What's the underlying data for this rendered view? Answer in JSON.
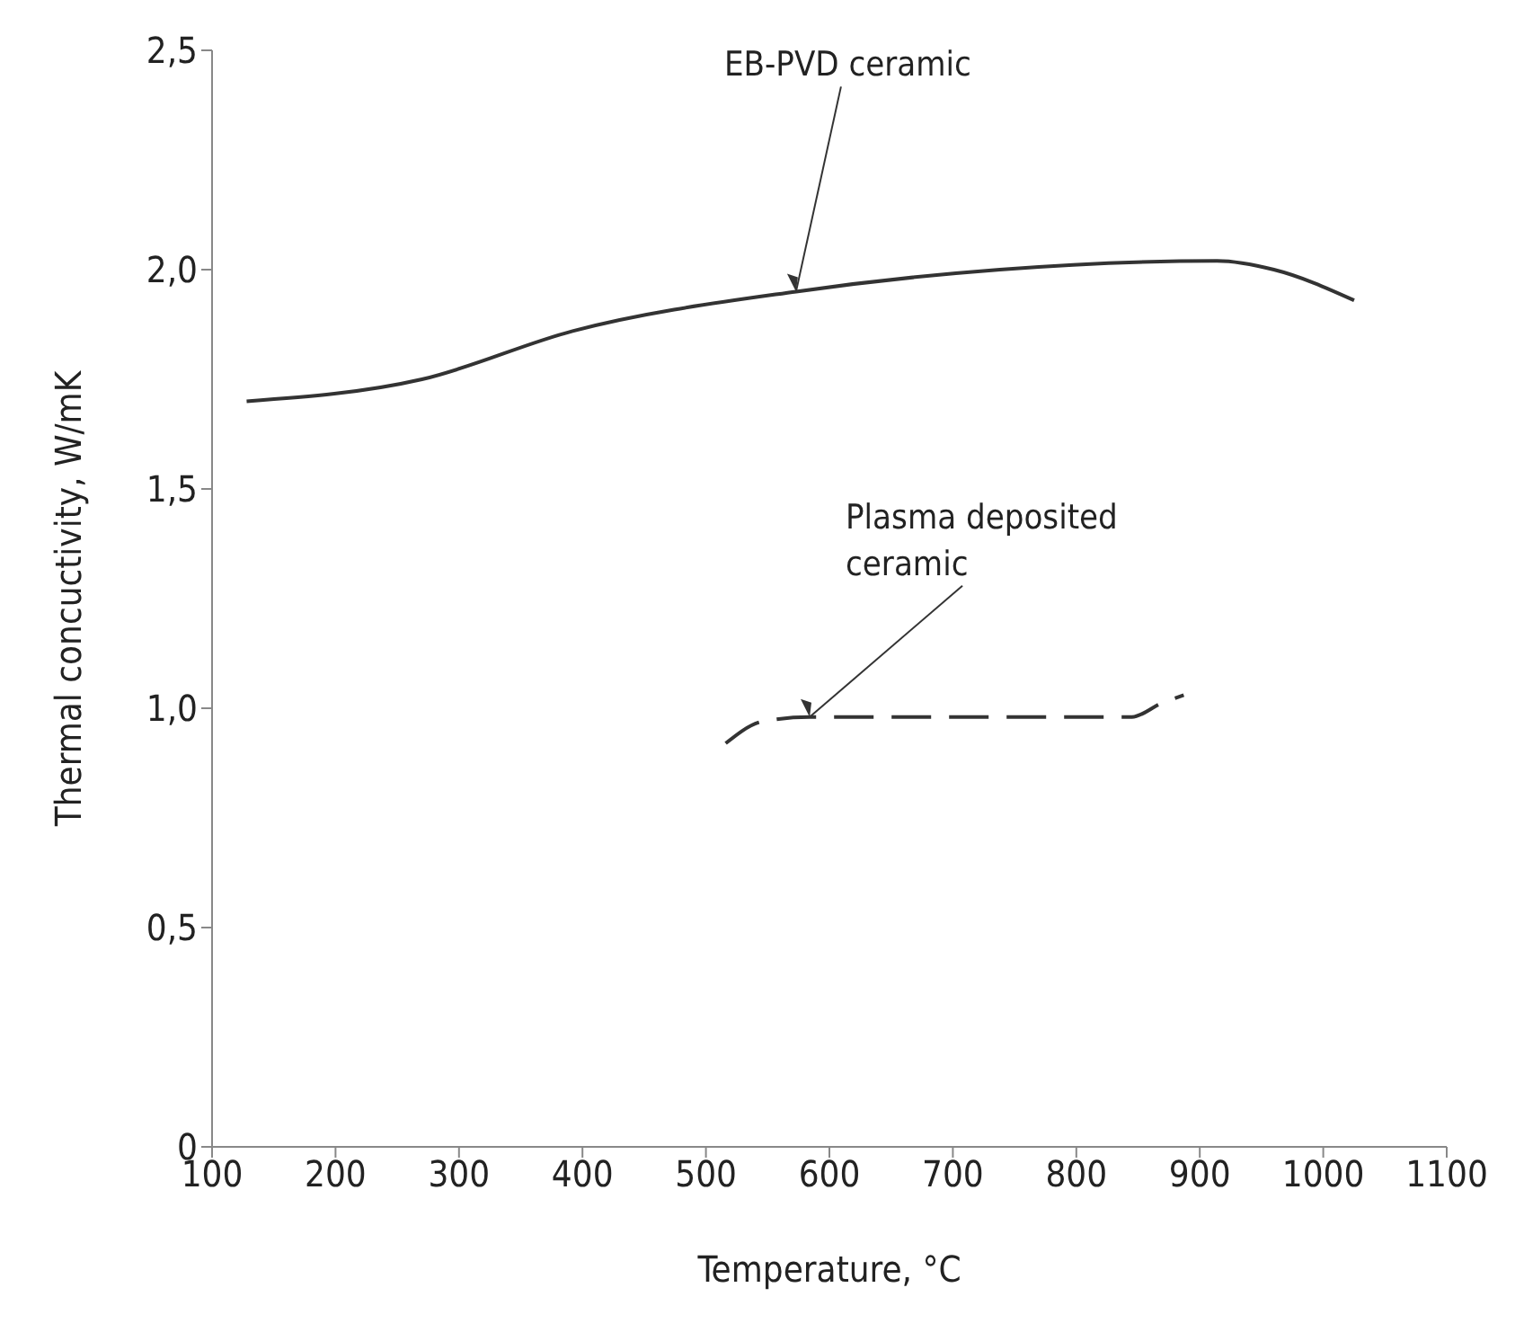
{
  "chart_data": {
    "type": "line",
    "xlabel": "Temperature, °C",
    "ylabel": "Thermal concuctivity, W/mK",
    "xlim": [
      100,
      1100
    ],
    "xticks": [
      100,
      200,
      300,
      400,
      500,
      600,
      700,
      800,
      900,
      1000,
      1100
    ],
    "ylim": [
      0,
      2.5
    ],
    "yticks": [
      0,
      {
        "value": 0.5,
        "label": "0,5"
      },
      {
        "value": 1,
        "label": "1,0"
      },
      {
        "value": 1.5,
        "label": "1,5"
      },
      {
        "value": 2,
        "label": "2,0"
      },
      {
        "value": 2.5,
        "label": "2,5"
      }
    ],
    "marker": "none",
    "series": [
      {
        "name": "EB-PVD ceramic",
        "color": "#333333",
        "line_style": "solid",
        "x": [
          128,
          270,
          392,
          573,
          738,
          914,
          960,
          1025
        ],
        "values": [
          1.7,
          1.75,
          1.86,
          1.95,
          2.0,
          2.02,
          2.0,
          1.93
        ]
      },
      {
        "name": "Plasma deposited ceramic",
        "color": "#333333",
        "line_style": "dashed",
        "x": [
          516,
          546,
          584,
          845,
          868,
          887
        ],
        "values": [
          0.92,
          0.97,
          0.98,
          0.98,
          1.01,
          1.03
        ]
      }
    ]
  }
}
